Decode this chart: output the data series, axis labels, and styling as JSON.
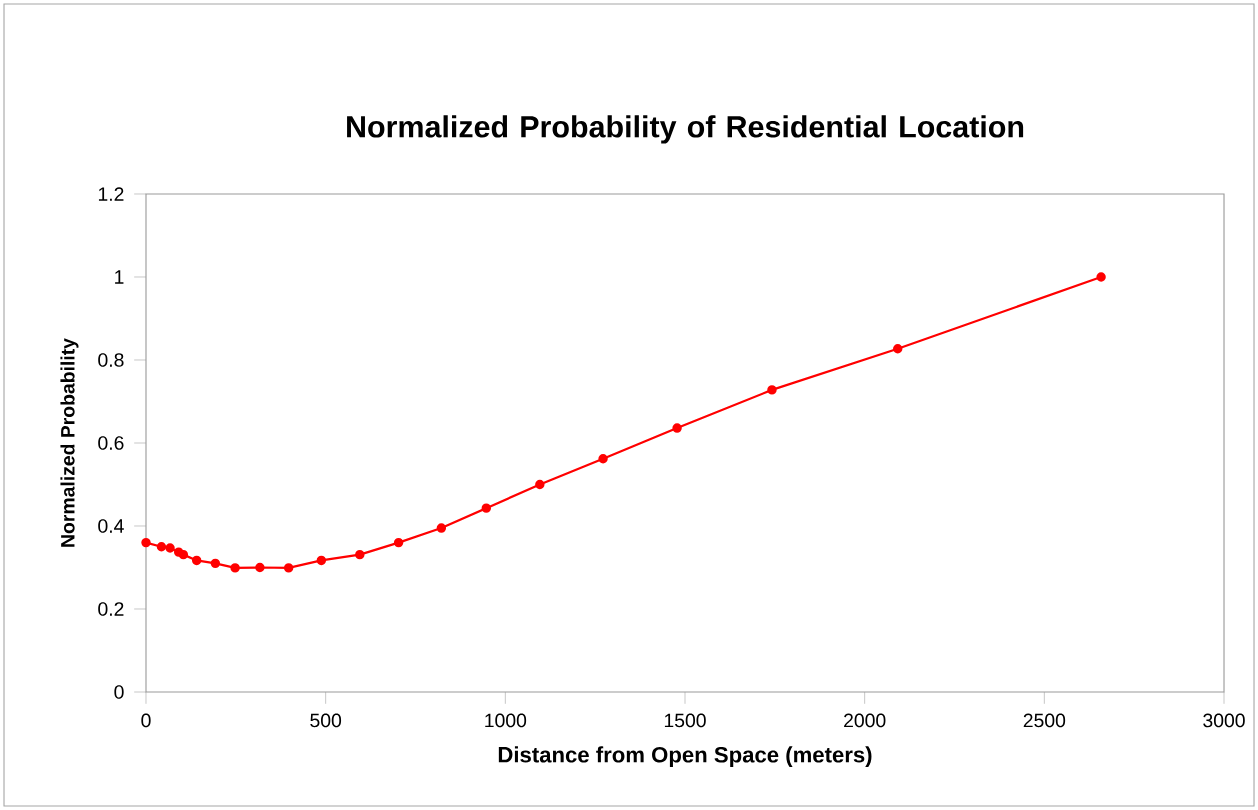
{
  "chart_data": {
    "type": "line",
    "title": "Normalized Probability of Residential Location",
    "xlabel": "Distance from Open Space (meters)",
    "ylabel": "Normalized Probability",
    "series": [
      {
        "color": "#ff0000",
        "x": [
          0,
          43,
          67,
          91,
          104,
          141,
          193,
          248,
          317,
          397,
          488,
          595,
          703,
          822,
          947,
          1096,
          1272,
          1478,
          1742,
          2092,
          2658
        ],
        "values": [
          0.36,
          0.35,
          0.347,
          0.337,
          0.331,
          0.317,
          0.31,
          0.299,
          0.3,
          0.299,
          0.317,
          0.331,
          0.36,
          0.395,
          0.443,
          0.5,
          0.562,
          0.636,
          0.728,
          0.827,
          1.0
        ]
      }
    ],
    "xlim": [
      0,
      3000
    ],
    "ylim": [
      0,
      1.2
    ],
    "xticks": [
      0,
      500,
      1000,
      1500,
      2000,
      2500,
      3000
    ],
    "yticks": [
      0,
      {
        "value": 0.2,
        "label": "0.2"
      },
      {
        "value": 0.4,
        "label": "0.4"
      },
      {
        "value": 0.6,
        "label": "0.6"
      },
      {
        "value": 0.8,
        "label": "0.8"
      },
      1,
      {
        "value": 1.2,
        "label": "1.2"
      }
    ],
    "grid": false,
    "marker": "circle",
    "line_style": "solid"
  }
}
